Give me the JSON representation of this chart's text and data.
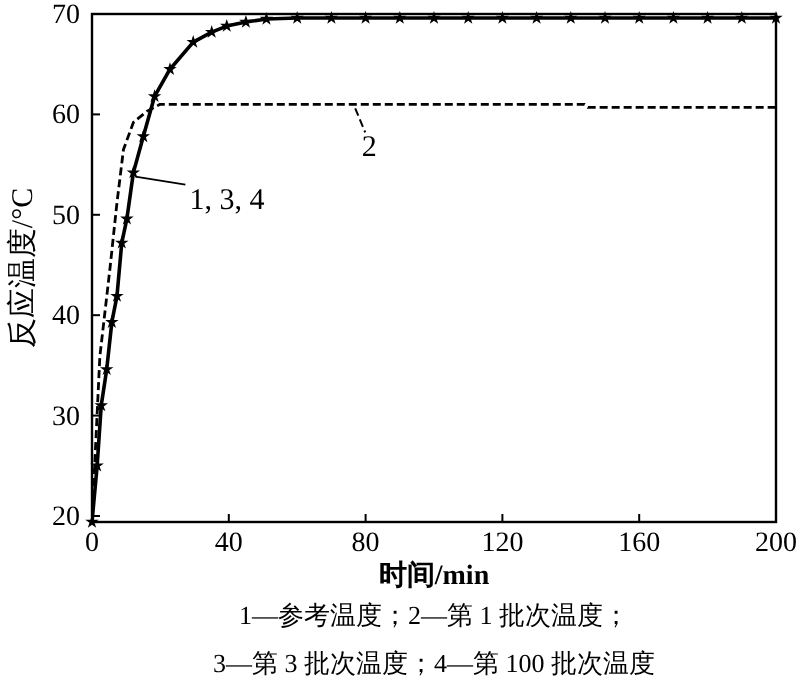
{
  "chart_data": {
    "type": "line",
    "xlabel": "时间/min",
    "ylabel": "反应温度/°C",
    "xlim": [
      0,
      200
    ],
    "ylim": [
      19.4,
      70
    ],
    "xticks": [
      0,
      40,
      80,
      120,
      160,
      200
    ],
    "yticks": [
      20,
      30,
      40,
      50,
      60,
      70
    ],
    "grid": false,
    "legend": "top left",
    "series": [
      {
        "name": "1, 3, 4",
        "color": "#000000",
        "marker": "star",
        "line_style": "solid",
        "x": [
          0,
          1.5,
          2.7,
          4.3,
          5.8,
          7.3,
          8.7,
          10.2,
          12.1,
          15,
          18.3,
          22.8,
          29.6,
          35,
          39.4,
          45,
          51,
          60,
          70,
          80,
          90,
          100,
          110,
          120,
          130,
          140,
          150,
          160,
          170,
          180,
          190,
          200
        ],
        "values": [
          19.4,
          25,
          31,
          34.6,
          39.3,
          41.9,
          47.2,
          49.6,
          54.2,
          57.8,
          61.8,
          64.5,
          67.2,
          68.2,
          68.8,
          69.2,
          69.5,
          69.6,
          69.6,
          69.6,
          69.6,
          69.6,
          69.6,
          69.6,
          69.6,
          69.6,
          69.6,
          69.6,
          69.6,
          69.6,
          69.6,
          69.6
        ]
      },
      {
        "name": "2",
        "color": "#000000",
        "marker": "none",
        "line_style": "dashed",
        "x": [
          0,
          2.3,
          5.3,
          7.3,
          9.2,
          12.1,
          16,
          19.9,
          60,
          144,
          145,
          200
        ],
        "values": [
          19.4,
          35.9,
          44.8,
          51.2,
          56.5,
          59.2,
          60.3,
          61,
          61,
          61,
          60.7,
          60.7
        ]
      }
    ],
    "annotations": [
      "1—参考温度；2—第 1 批次温度；",
      "3—第 3 批次温度；4—第 100 批次温度"
    ]
  }
}
